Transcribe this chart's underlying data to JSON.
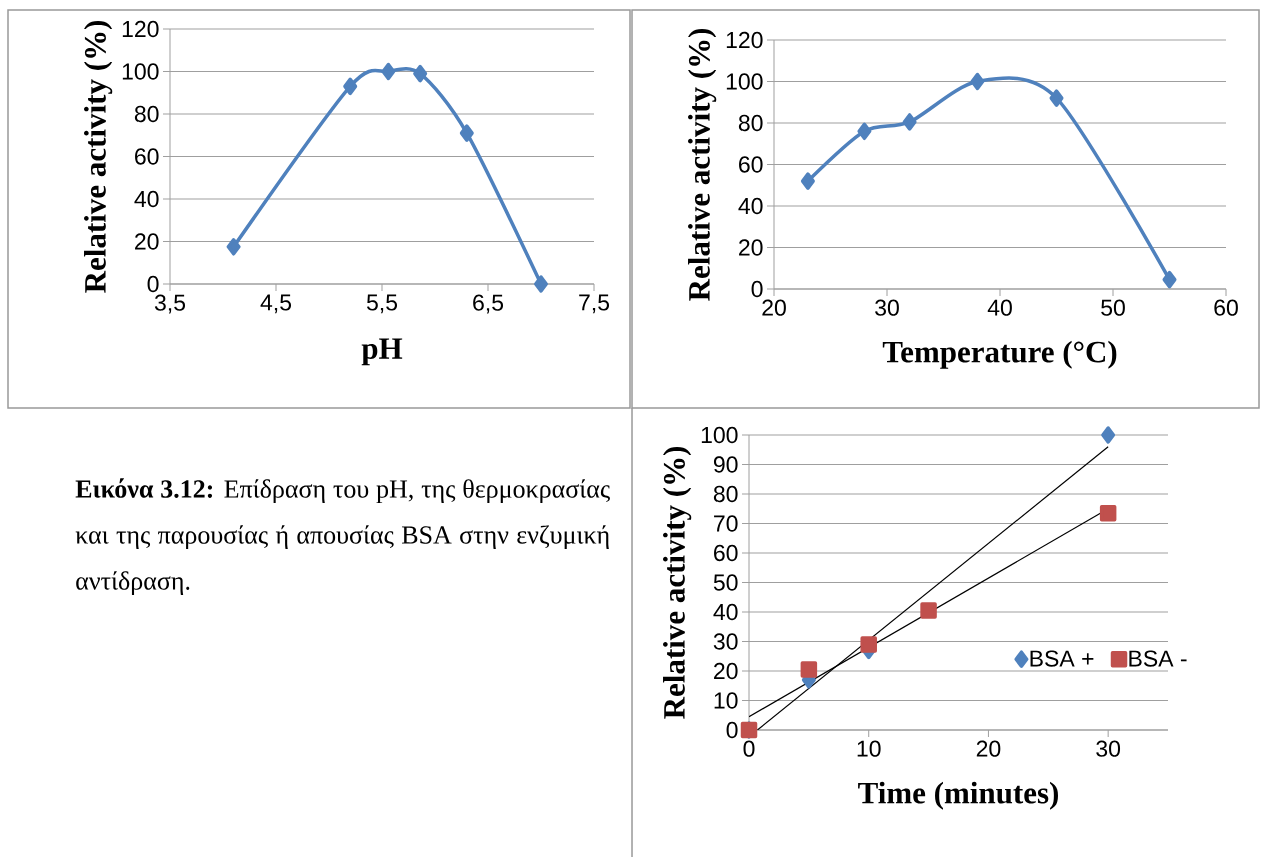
{
  "chart_data": [
    {
      "type": "line",
      "xlabel": "pH",
      "ylabel": "Relative activity (%)",
      "xlim": [
        3.5,
        7.5
      ],
      "ylim": [
        0,
        120
      ],
      "xticks": [
        {
          "value": 3.5,
          "label": "3,5"
        },
        {
          "value": 4.5,
          "label": "4,5"
        },
        {
          "value": 5.5,
          "label": "5,5"
        },
        {
          "value": 6.5,
          "label": "6,5"
        },
        {
          "value": 7.5,
          "label": "7,5"
        }
      ],
      "yticks": [
        0,
        20,
        40,
        60,
        80,
        100,
        120
      ],
      "grid": "y",
      "marker": "diamond",
      "x": [
        4.1,
        5.2,
        5.56,
        5.86,
        6.3,
        7.0
      ],
      "series": [
        {
          "color": "#4f81bd",
          "values": [
            17.5,
            93,
            100,
            99,
            71,
            0
          ]
        }
      ]
    },
    {
      "type": "line",
      "xlabel": "Temperature (°C)",
      "ylabel": "Relative activity (%)",
      "xlim": [
        20,
        60
      ],
      "ylim": [
        0,
        120
      ],
      "xticks": [
        20,
        30,
        40,
        50,
        60
      ],
      "yticks": [
        0,
        20,
        40,
        60,
        80,
        100,
        120
      ],
      "grid": "y",
      "marker": "diamond",
      "x": [
        23,
        28,
        32,
        38,
        45,
        55
      ],
      "series": [
        {
          "color": "#4f81bd",
          "values": [
            52,
            76,
            80.5,
            100,
            92,
            4.5
          ]
        }
      ]
    },
    {
      "type": "scatter",
      "xlabel": "Time (minutes)",
      "ylabel": "Relative activity (%)",
      "xlim": [
        0,
        35
      ],
      "ylim": [
        0,
        100
      ],
      "xticks": [
        0,
        10,
        20,
        30
      ],
      "yticks": [
        0,
        10,
        20,
        30,
        40,
        50,
        60,
        70,
        80,
        90,
        100
      ],
      "grid": "y",
      "legend": "right",
      "series": [
        {
          "name": "BSA +",
          "color": "#4f81bd",
          "marker": "diamond",
          "x": [
            0,
            5,
            10,
            30
          ],
          "values": [
            0,
            17,
            27,
            100
          ]
        },
        {
          "name": "BSA -",
          "color": "#c0504d",
          "marker": "square",
          "x": [
            0,
            5,
            10,
            15,
            30
          ],
          "values": [
            0,
            20.5,
            29,
            40.5,
            73.5
          ]
        },
        {
          "type": "line",
          "color": "#000000",
          "marker": "none",
          "x": [
            0.7,
            30
          ],
          "values": [
            0,
            96
          ]
        },
        {
          "type": "line",
          "color": "#000000",
          "marker": "none",
          "x": [
            0,
            30
          ],
          "values": [
            4.5,
            75
          ]
        }
      ]
    },
    {
      "type": "other",
      "annotations": [
        "**Εικόνα 3.12:** Επίδραση του pH, της θερμοκρασίας και της παρουσίας ή απουσίας BSA στην ενζυμική αντίδραση."
      ]
    }
  ]
}
